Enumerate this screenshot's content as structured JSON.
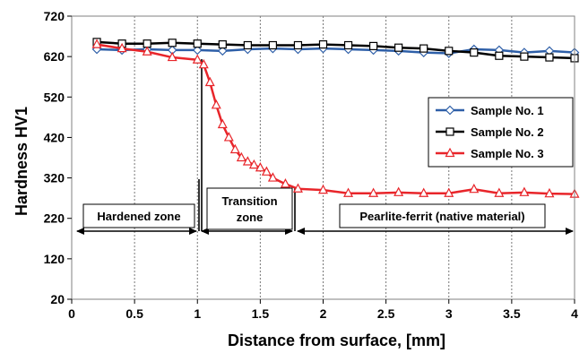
{
  "chart_data": {
    "type": "line",
    "xlabel": "Distance from surface, [mm]",
    "ylabel": "Hardness  HV1",
    "xlim": [
      0,
      4
    ],
    "ylim": [
      20,
      720
    ],
    "xticks": [
      0,
      0.5,
      1,
      1.5,
      2,
      2.5,
      3,
      3.5,
      4
    ],
    "xtick_labels": [
      "0",
      "0.5",
      "1",
      "1.5",
      "2",
      "2.5",
      "3",
      "3.5",
      "4"
    ],
    "yticks": [
      20,
      120,
      220,
      320,
      420,
      520,
      620,
      720
    ],
    "ytick_labels": [
      "20",
      "120",
      "220",
      "320",
      "420",
      "520",
      "620",
      "720"
    ],
    "grid": "vertical dashed",
    "legend_position": "right",
    "series": [
      {
        "name": "Sample No. 1",
        "color": "#2E5FA8",
        "marker": "diamond",
        "x": [
          0.2,
          0.4,
          0.6,
          0.8,
          1.0,
          1.2,
          1.4,
          1.6,
          1.8,
          2.0,
          2.2,
          2.4,
          2.6,
          2.8,
          3.0,
          3.2,
          3.4,
          3.6,
          3.8,
          4.0
        ],
        "y": [
          638,
          636,
          638,
          636,
          636,
          634,
          638,
          640,
          638,
          640,
          638,
          636,
          634,
          630,
          628,
          638,
          636,
          630,
          634,
          630
        ]
      },
      {
        "name": "Sample No. 2",
        "color": "#000000",
        "marker": "square",
        "x": [
          0.2,
          0.4,
          0.6,
          0.8,
          1.0,
          1.2,
          1.4,
          1.6,
          1.8,
          2.0,
          2.2,
          2.4,
          2.6,
          2.8,
          3.0,
          3.2,
          3.4,
          3.6,
          3.8,
          4.0
        ],
        "y": [
          656,
          652,
          652,
          654,
          652,
          650,
          648,
          648,
          648,
          650,
          648,
          646,
          642,
          640,
          634,
          630,
          622,
          620,
          618,
          616
        ]
      },
      {
        "name": "Sample No. 3",
        "color": "#E8252A",
        "marker": "triangle",
        "x": [
          0.2,
          0.4,
          0.6,
          0.8,
          1.0,
          1.05,
          1.1,
          1.15,
          1.2,
          1.25,
          1.3,
          1.35,
          1.4,
          1.45,
          1.5,
          1.55,
          1.6,
          1.7,
          1.8,
          2.0,
          2.2,
          2.4,
          2.6,
          2.8,
          3.0,
          3.2,
          3.4,
          3.6,
          3.8,
          4.0
        ],
        "y": [
          650,
          640,
          632,
          618,
          612,
          600,
          556,
          500,
          452,
          420,
          390,
          370,
          360,
          352,
          345,
          335,
          320,
          305,
          293,
          290,
          282,
          282,
          284,
          282,
          282,
          292,
          282,
          284,
          281,
          280
        ]
      }
    ],
    "annotations": {
      "zones": [
        {
          "label": "Hardened zone",
          "lines": [
            "Hardened zone"
          ],
          "x_from": 0,
          "x_to": 1.05
        },
        {
          "label": "Transition zone",
          "lines": [
            "Transition",
            "zone"
          ],
          "x_from": 1.05,
          "x_to": 1.8
        },
        {
          "label": "Pearlite-ferrit  (native material)",
          "lines": [
            "Pearlite-ferrit  (native material)"
          ],
          "x_from": 1.8,
          "x_to": 4
        }
      ]
    }
  }
}
